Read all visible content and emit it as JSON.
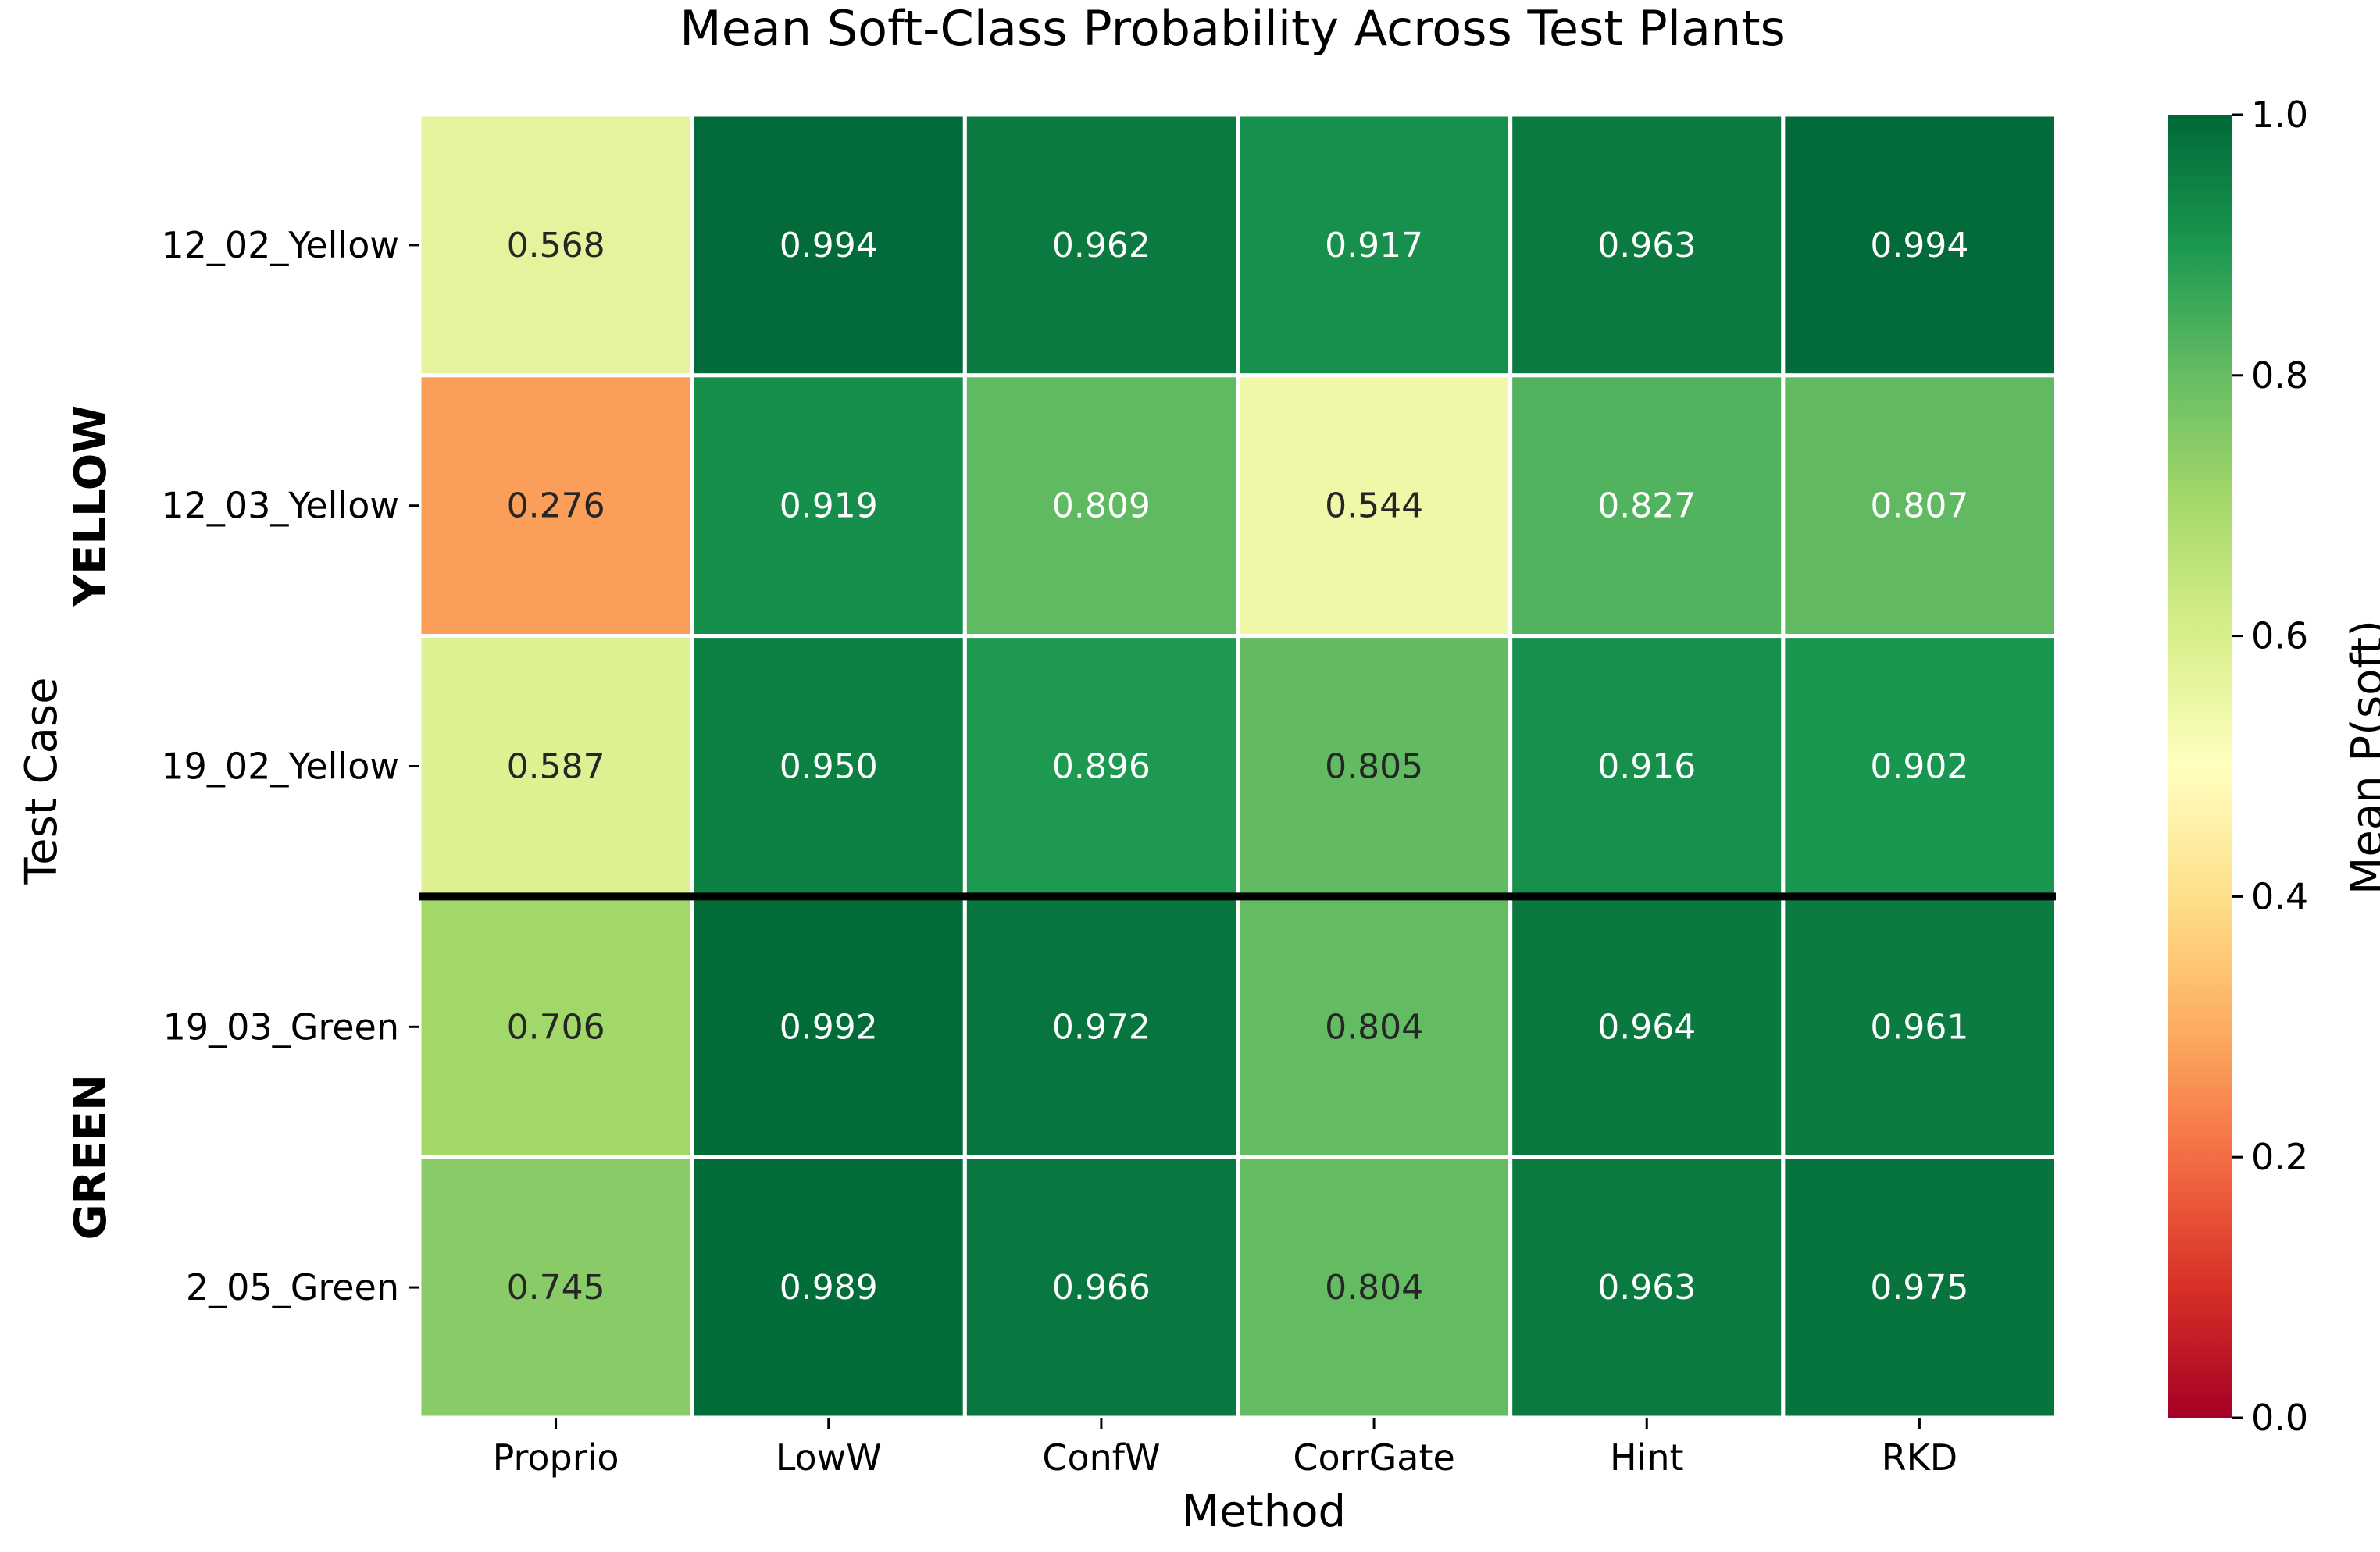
{
  "chart_data": {
    "type": "heatmap",
    "title": "Mean Soft-Class Probability Across Test Plants",
    "xlabel": "Method",
    "ylabel": "Test Case",
    "x_categories": [
      "Proprio",
      "LowW",
      "ConfW",
      "CorrGate",
      "Hint",
      "RKD"
    ],
    "y_categories": [
      "12_02_Yellow",
      "12_03_Yellow",
      "19_02_Yellow",
      "19_03_Green",
      "2_05_Green"
    ],
    "values": [
      [
        0.568,
        0.994,
        0.962,
        0.917,
        0.963,
        0.994
      ],
      [
        0.276,
        0.919,
        0.809,
        0.544,
        0.827,
        0.807
      ],
      [
        0.587,
        0.95,
        0.896,
        0.805,
        0.916,
        0.902
      ],
      [
        0.706,
        0.992,
        0.972,
        0.804,
        0.964,
        0.961
      ],
      [
        0.745,
        0.989,
        0.966,
        0.804,
        0.963,
        0.975
      ]
    ],
    "row_groups": [
      {
        "label": "YELLOW",
        "rows": [
          0,
          2
        ]
      },
      {
        "label": "GREEN",
        "rows": [
          3,
          4
        ]
      }
    ],
    "group_separator_after_row": 2,
    "colormap": "RdYlGn",
    "colorbar": {
      "label": "Mean P(soft)",
      "range": [
        0.0,
        1.0
      ],
      "ticks": [
        "0.0",
        "0.2",
        "0.4",
        "0.6",
        "0.8",
        "1.0"
      ]
    }
  }
}
